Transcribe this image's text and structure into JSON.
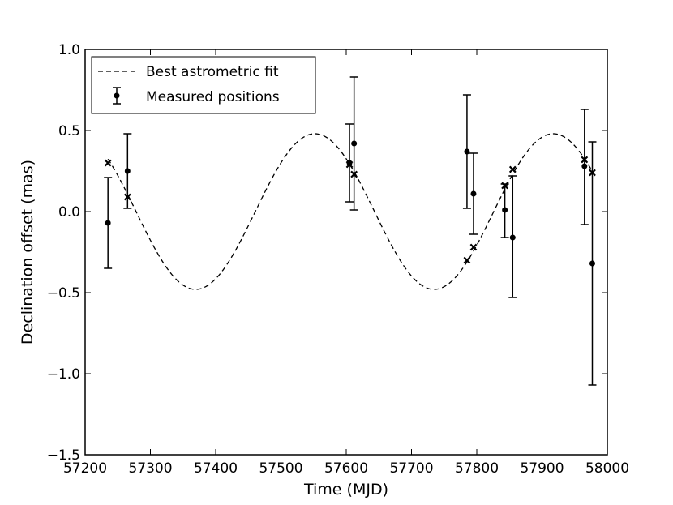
{
  "chart_data": {
    "type": "scatter",
    "xlabel": "Time (MJD)",
    "ylabel": "Declination offset (mas)",
    "xlim": [
      57200,
      58000
    ],
    "ylim": [
      -1.5,
      1.0
    ],
    "xticks": [
      57200,
      57300,
      57400,
      57500,
      57600,
      57700,
      57800,
      57900,
      58000
    ],
    "yticks": [
      -1.5,
      -1.0,
      -0.5,
      0.0,
      0.5,
      1.0
    ],
    "xtick_labels": [
      "57200",
      "57300",
      "57400",
      "57500",
      "57600",
      "57700",
      "57800",
      "57900",
      "58000"
    ],
    "ytick_labels": [
      "−1.5",
      "−1.0",
      "−0.5",
      "0.0",
      "0.5",
      "1.0"
    ],
    "grid": false,
    "legend_position": "top-left",
    "series": [
      {
        "name": "Best astrometric fit",
        "style": "dashed line",
        "model": {
          "amplitude": 0.48,
          "period": 365.25,
          "peak_mjd": 57552
        }
      },
      {
        "name": "Measured positions",
        "style": "points with error bars",
        "points": [
          {
            "x": 57235,
            "y": -0.07,
            "ylow": -0.35,
            "yhigh": 0.21
          },
          {
            "x": 57265,
            "y": 0.25,
            "ylow": 0.02,
            "yhigh": 0.48
          },
          {
            "x": 57605,
            "y": 0.3,
            "ylow": 0.06,
            "yhigh": 0.54
          },
          {
            "x": 57612,
            "y": 0.42,
            "ylow": 0.01,
            "yhigh": 0.83
          },
          {
            "x": 57785,
            "y": 0.37,
            "ylow": 0.02,
            "yhigh": 0.72
          },
          {
            "x": 57795,
            "y": 0.11,
            "ylow": -0.14,
            "yhigh": 0.36
          },
          {
            "x": 57843,
            "y": 0.01,
            "ylow": -0.16,
            "yhigh": 0.17
          },
          {
            "x": 57855,
            "y": -0.16,
            "ylow": -0.53,
            "yhigh": 0.22
          },
          {
            "x": 57965,
            "y": 0.28,
            "ylow": -0.08,
            "yhigh": 0.63
          },
          {
            "x": 57977,
            "y": -0.32,
            "ylow": -1.07,
            "yhigh": 0.43
          }
        ]
      },
      {
        "marker": "x",
        "points": [
          {
            "x": 57235,
            "y": 0.3
          },
          {
            "x": 57265,
            "y": 0.09
          },
          {
            "x": 57605,
            "y": 0.29
          },
          {
            "x": 57612,
            "y": 0.23
          },
          {
            "x": 57785,
            "y": -0.3
          },
          {
            "x": 57795,
            "y": -0.22
          },
          {
            "x": 57843,
            "y": 0.16
          },
          {
            "x": 57855,
            "y": 0.26
          },
          {
            "x": 57965,
            "y": 0.32
          },
          {
            "x": 57977,
            "y": 0.24
          }
        ]
      }
    ],
    "colors": {
      "line": "#000000",
      "background": "#ffffff"
    }
  }
}
